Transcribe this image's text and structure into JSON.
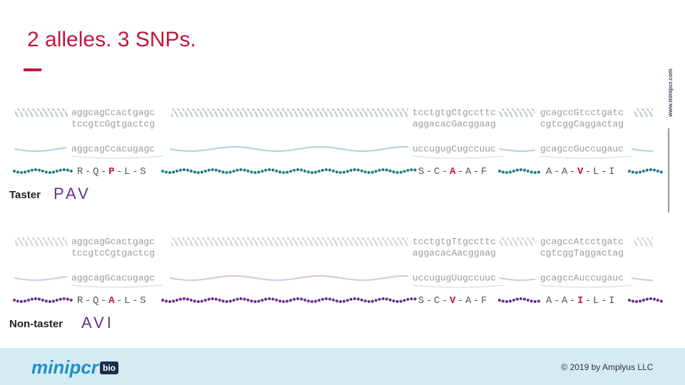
{
  "title": "2 alleles. 3 SNPs.",
  "website": "www.minipcr.com",
  "alleles": [
    {
      "label": "Taster",
      "haplotype": "PAV",
      "segments": [
        {
          "dna_top": "aggcagCcactgagc",
          "dna_bottom": "tccgtcGgtgactcg",
          "mrna": "aggcagCcacugagc",
          "protein": "R-Q-P-L-S"
        },
        {
          "dna_top": "tcctgtgCtgccttc",
          "dna_bottom": "aggacacGacggaag",
          "mrna": "uccugugCugccuuc",
          "protein": "S-C-A-A-F"
        },
        {
          "dna_top": "gcagccGtcctgatc",
          "dna_bottom": "cgtcggCaggactag",
          "mrna": "gcagccGuccugauc",
          "protein": "A-A-V-L-I"
        }
      ]
    },
    {
      "label": "Non-taster",
      "haplotype": "AVI",
      "segments": [
        {
          "dna_top": "aggcagGcactgagc",
          "dna_bottom": "tccgtcCgtgactcg",
          "mrna": "aggcagGcacugagc",
          "protein": "R-Q-A-L-S"
        },
        {
          "dna_top": "tcctgtgTtgccttc",
          "dna_bottom": "aggacacAacggaag",
          "mrna": "uccugugUugccuuc",
          "protein": "S-C-V-A-F"
        },
        {
          "dna_top": "gcagccAtcctgatc",
          "dna_bottom": "cgtcggTaggactag",
          "mrna": "gcagccAuccugauc",
          "protein": "A-A-I-L-I"
        }
      ]
    }
  ],
  "footer": {
    "logo": "minipcr",
    "logo_badge": "bio",
    "copyright": "© 2019 by Amplyus LLC"
  }
}
